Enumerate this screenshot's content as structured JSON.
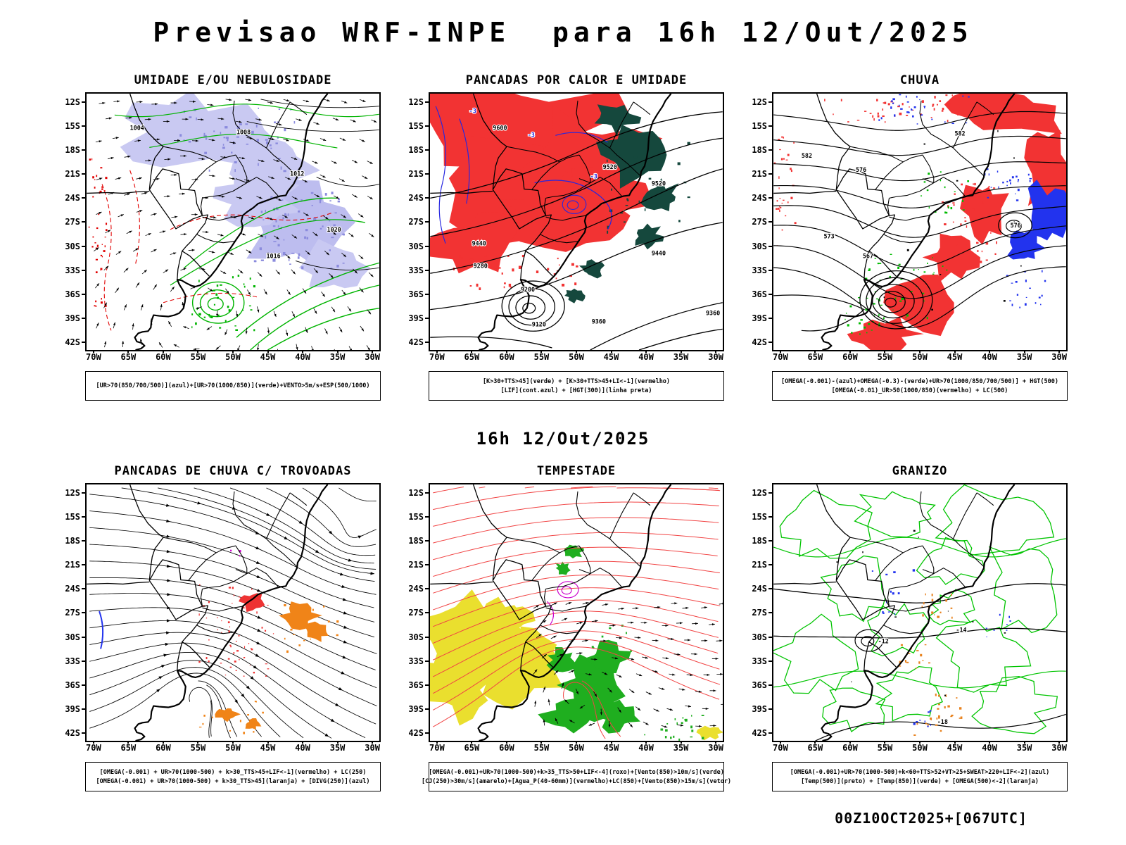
{
  "page": {
    "title": "Previsao WRF-INPE  para 16h 12/Out/2025",
    "valid_time": "16h 12/Out/2025",
    "run_info": "00Z10OCT2025+[067UTC]"
  },
  "axes": {
    "lat": [
      "12S",
      "15S",
      "18S",
      "21S",
      "24S",
      "27S",
      "30S",
      "33S",
      "36S",
      "39S",
      "42S"
    ],
    "lon": [
      "70W",
      "65W",
      "60W",
      "55W",
      "50W",
      "45W",
      "40W",
      "35W",
      "30W"
    ]
  },
  "colors": {
    "red_fill": "#f23333",
    "teal_fill": "#15483d",
    "lavender_fill": "#c9c9f2",
    "purple_specks": "#8b8bdd",
    "green_contour": "#00b400",
    "green_fill": "#1fae1f",
    "red_contour": "#e10000",
    "blue_contour": "#2626e0",
    "blue_fill": "#2233ee",
    "yellow_fill": "#eadf2e",
    "orange_fill": "#f08418",
    "magenta_contour": "#cc00cc",
    "black": "#000000"
  },
  "panels": [
    {
      "id": "umidade",
      "title": "UMIDADE E/OU NEBULOSIDADE",
      "caption": [
        "[UR>70(850/700/500)](azul)+[UR>70(1000/850)](verde)+VENTO>5m/s+ESP(500/1000)"
      ],
      "contour_labels": [
        "1004",
        "1008",
        "1012",
        "1016",
        "1020"
      ]
    },
    {
      "id": "pancadas-calor",
      "title": "PANCADAS POR CALOR E UMIDADE",
      "caption": [
        "[K>30+TTS>45](verde) + [K>30+TTS>45+LI<-1](vermelho)",
        "[LIF](cont.azul) + [HGT(300)](linha preta)"
      ],
      "contour_labels": [
        "9600",
        "9520",
        "9440",
        "9360",
        "9280",
        "9200",
        "9120"
      ],
      "li_label": "-3"
    },
    {
      "id": "chuva",
      "title": "CHUVA",
      "caption": [
        "[OMEGA(-0.001)-(azul)+OMEGA(-0.3)-(verde)+UR>70(1000/850/700/500)] + HGT(500)",
        "[OMEGA(-0.01)_UR>50(1000/850)(vermelho) + LC(500)"
      ],
      "contour_labels": [
        "582",
        "576",
        "573",
        "567"
      ]
    },
    {
      "id": "trovoadas",
      "title": "PANCADAS DE CHUVA C/ TROVOADAS",
      "caption": [
        "[OMEGA(-0.001) + UR>70(1000-500) + k>30_TTS>45+LIF<-1](vermelho) + LC(250)",
        "[OMEGA(-0.001) + UR>70(1000-500) + k>30_TTS>45](laranja) + [DIVG(250)](azul)"
      ],
      "contour_labels": []
    },
    {
      "id": "tempestade",
      "title": "TEMPESTADE",
      "caption": [
        "[OMEGA(-0.001)+UR>70(1000-500)+k>35_TTS>50+LIF<-4](roxo)+[Vento(850)>10m/s](verde)",
        "[CJ(250)>30m/s](amarelo)+[Agua_P(40-60mm)](vermelho)+LC(850)+[Vento(850)>15m/s](vetor)"
      ],
      "contour_labels": []
    },
    {
      "id": "granizo",
      "title": "GRANIZO",
      "caption": [
        "[OMEGA(-0.001)+UR>70(1000-500)+k<60+TTS>52+VT>25+SWEAT>220+LIF<-2](azul)",
        "[Temp(500)](preto) + [Temp(850)](verde) + [OMEGA(500)<-2](laranja)"
      ],
      "contour_labels": [
        "-12",
        "-14",
        "-18"
      ]
    }
  ]
}
